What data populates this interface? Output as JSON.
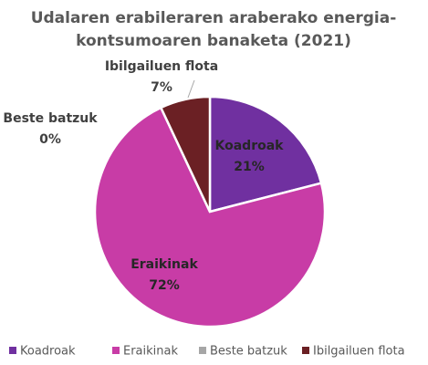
{
  "chart_data": {
    "type": "pie",
    "title": [
      "Udalaren erabileraren araberako energia-",
      "kontsumoaren banaketa (2021)"
    ],
    "categories": [
      "Koadroak",
      "Eraikinak",
      "Beste batzuk",
      "Ibilgailuen flota"
    ],
    "values": [
      21,
      72,
      0,
      7
    ],
    "value_labels": [
      "21%",
      "72%",
      "0%",
      "7%"
    ],
    "colors": [
      "#7030a0",
      "#c83ca6",
      "#a6a6a6",
      "#6b2024"
    ],
    "legend": "bottom"
  }
}
